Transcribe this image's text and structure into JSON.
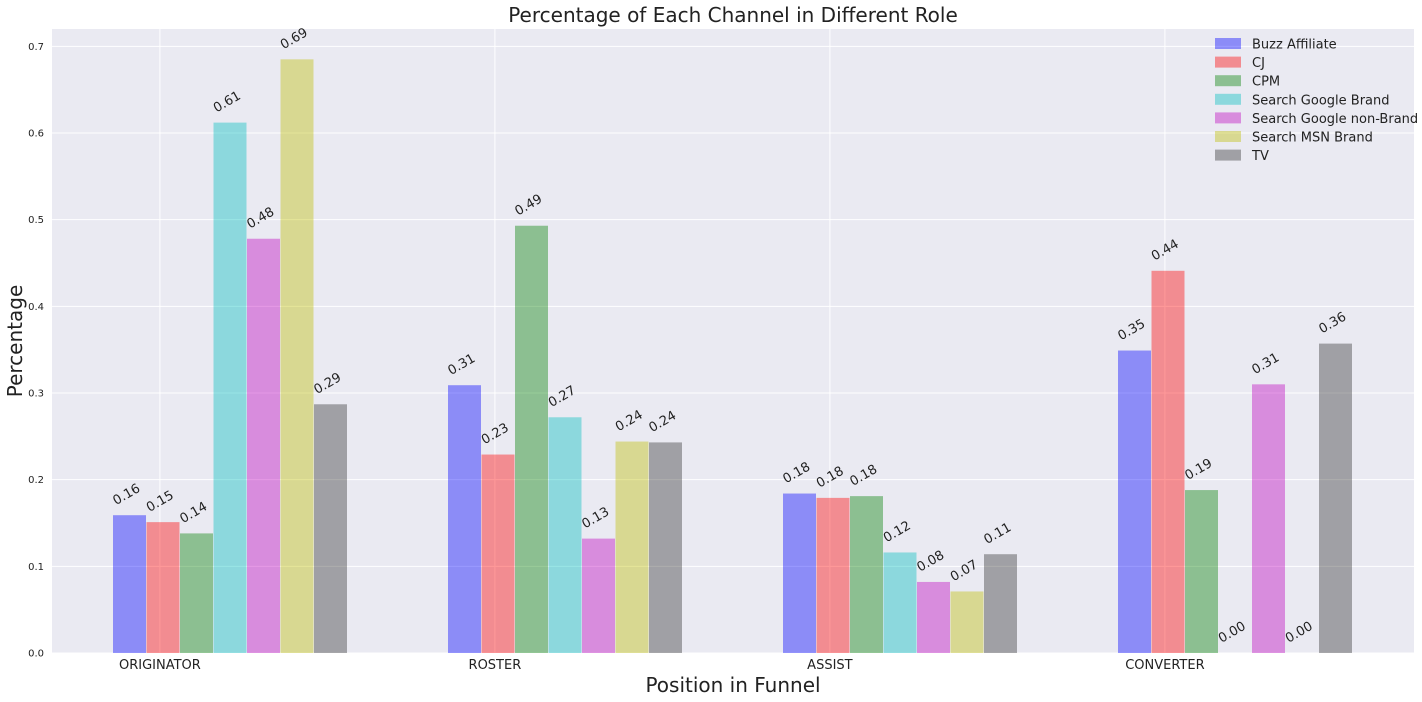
{
  "chart_data": {
    "type": "bar",
    "title": "Percentage of Each Channel in Different Role",
    "xlabel": "Position in Funnel",
    "ylabel": "Percentage",
    "categories": [
      "ORIGINATOR",
      "ROSTER",
      "ASSIST",
      "CONVERTER"
    ],
    "ylim": [
      0,
      0.72
    ],
    "yticks": [
      0.0,
      0.1,
      0.2,
      0.3,
      0.4,
      0.5,
      0.6,
      0.7
    ],
    "ytick_labels": [
      "0.0",
      "0.1",
      "0.2",
      "0.3",
      "0.4",
      "0.5",
      "0.6",
      "0.7"
    ],
    "grid": true,
    "legend_position": "top-right",
    "series": [
      {
        "name": "Buzz Affiliate",
        "color": "#0000ff",
        "values": [
          0.159,
          0.309,
          0.184,
          0.349
        ],
        "labels": [
          "0.16",
          "0.31",
          "0.18",
          "0.35"
        ]
      },
      {
        "name": "CJ",
        "color": "#ff0000",
        "values": [
          0.151,
          0.229,
          0.179,
          0.441
        ],
        "labels": [
          "0.15",
          "0.23",
          "0.18",
          "0.44"
        ]
      },
      {
        "name": "CPM",
        "color": "#008000",
        "values": [
          0.138,
          0.493,
          0.181,
          0.188
        ],
        "labels": [
          "0.14",
          "0.49",
          "0.18",
          "0.19"
        ]
      },
      {
        "name": "Search Google Brand",
        "color": "#00bfbf",
        "values": [
          0.612,
          0.272,
          0.116,
          0.0
        ],
        "labels": [
          "0.61",
          "0.27",
          "0.12",
          "0.00"
        ]
      },
      {
        "name": "Search Google non-Brand",
        "color": "#bf00bf",
        "values": [
          0.478,
          0.132,
          0.082,
          0.31
        ],
        "labels": [
          "0.48",
          "0.13",
          "0.08",
          "0.31"
        ]
      },
      {
        "name": "Search MSN Brand",
        "color": "#bfbf00",
        "values": [
          0.685,
          0.244,
          0.071,
          0.0
        ],
        "labels": [
          "0.69",
          "0.24",
          "0.07",
          "0.00"
        ]
      },
      {
        "name": "TV",
        "color": "#333333",
        "values": [
          0.287,
          0.243,
          0.114,
          0.357
        ],
        "labels": [
          "0.29",
          "0.24",
          "0.11",
          "0.36"
        ]
      }
    ]
  }
}
